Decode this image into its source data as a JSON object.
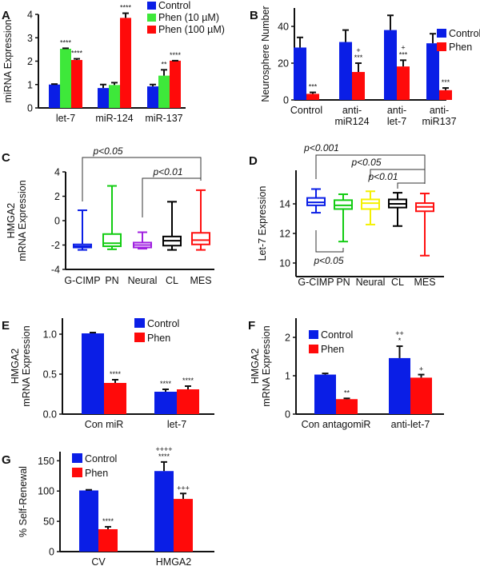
{
  "figure": {
    "colors": {
      "control": "#0a1ee6",
      "phen": "#ff0a0a",
      "phen10": "#3ee83a",
      "phen100": "#ff0a0a",
      "gcimp": "#0a1ee6",
      "pn": "#12cc12",
      "neural_c": "#a020e0",
      "neural_d": "#f4f000",
      "cl": "#000000",
      "mes": "#ff1010",
      "axis": "#111111"
    }
  },
  "chart_data": [
    {
      "panel": "A",
      "type": "bar",
      "title": "",
      "xlabel": "",
      "ylabel": "miRNA Expression",
      "ylim": [
        0,
        4
      ],
      "yticks": [
        "0",
        "1",
        "2",
        "3",
        "4"
      ],
      "categories": [
        "let-7",
        "miR-124",
        "miR-137"
      ],
      "legend": {
        "placement": "top-right",
        "entries": [
          "Control",
          "Phen (10 µM)",
          "Phen (100 µM)"
        ]
      },
      "series": [
        {
          "name": "Control",
          "values": [
            1.0,
            0.85,
            0.92
          ],
          "errors": [
            0.02,
            0.15,
            0.08
          ],
          "sig": [
            "",
            "",
            ""
          ]
        },
        {
          "name": "Phen (10 µM)",
          "values": [
            2.53,
            0.98,
            1.38
          ],
          "errors": [
            0.02,
            0.1,
            0.25
          ],
          "sig": [
            "****",
            "",
            "**"
          ]
        },
        {
          "name": "Phen (100 µM)",
          "values": [
            2.05,
            3.85,
            2.02
          ],
          "errors": [
            0.05,
            0.2,
            0.0
          ],
          "sig": [
            "****",
            "****",
            "****"
          ]
        }
      ]
    },
    {
      "panel": "B",
      "type": "bar",
      "ylabel": "Neurosphere  Number",
      "ylim": [
        0,
        50
      ],
      "yticks": [
        "0",
        "20",
        "40"
      ],
      "categories": [
        [
          "Control"
        ],
        [
          "anti-",
          "miR124"
        ],
        [
          "anti-",
          "let-7"
        ],
        [
          "anti-",
          "miR137"
        ]
      ],
      "legend": {
        "placement": "right",
        "entries": [
          "Control",
          "Phen"
        ]
      },
      "series": [
        {
          "name": "Control",
          "values": [
            28.5,
            31.5,
            38,
            30.8
          ],
          "errors": [
            5.5,
            6.5,
            8,
            5.2
          ],
          "sig": [
            "",
            "",
            "",
            ""
          ]
        },
        {
          "name": "Phen",
          "values": [
            3.3,
            15.2,
            18.2,
            5.3
          ],
          "errors": [
            0.8,
            4.8,
            3.4,
            1.2
          ],
          "sig": [
            "***",
            "+\n***",
            "+\n***",
            "***"
          ]
        }
      ]
    },
    {
      "panel": "C",
      "type": "box",
      "ylabel": "HMGA2\nmRNA Expression",
      "ylim": [
        -4,
        4
      ],
      "yticks": [
        "-4",
        "-2",
        "0",
        "2",
        "4"
      ],
      "categories": [
        "G-CIMP",
        "PN",
        "Neural",
        "CL",
        "MES"
      ],
      "boxes": [
        {
          "name": "G-CIMP",
          "min": -2.4,
          "q1": -2.2,
          "median": -2.1,
          "q3": -1.95,
          "max": 0.85
        },
        {
          "name": "PN",
          "min": -2.35,
          "q1": -2.1,
          "median": -1.85,
          "q3": -1.1,
          "max": 2.85
        },
        {
          "name": "Neural",
          "min": -2.3,
          "q1": -2.2,
          "median": -2.0,
          "q3": -1.8,
          "max": -0.95
        },
        {
          "name": "CL",
          "min": -2.4,
          "q1": -2.05,
          "median": -1.65,
          "q3": -1.3,
          "max": 1.55
        },
        {
          "name": "MES",
          "min": -2.4,
          "q1": -1.95,
          "median": -1.6,
          "q3": -1.0,
          "max": 2.5
        }
      ],
      "annotations": [
        {
          "text": "p<0.05",
          "from": "G-CIMP",
          "to": "MES"
        },
        {
          "text": "p<0.01",
          "from": "Neural",
          "to": "MES"
        }
      ]
    },
    {
      "panel": "D",
      "type": "box",
      "ylabel": "Let-7  Expression",
      "ylim": [
        9,
        16
      ],
      "yticks": [
        "10",
        "12",
        "14"
      ],
      "categories": [
        "G-CIMP",
        "PN",
        "Neural",
        "CL",
        "MES"
      ],
      "boxes": [
        {
          "name": "G-CIMP",
          "min": 13.4,
          "q1": 13.9,
          "median": 14.1,
          "q3": 14.4,
          "max": 15.0
        },
        {
          "name": "PN",
          "min": 11.45,
          "q1": 13.65,
          "median": 13.9,
          "q3": 14.25,
          "max": 14.65
        },
        {
          "name": "Neural",
          "min": 12.6,
          "q1": 13.65,
          "median": 14.05,
          "q3": 14.3,
          "max": 14.85
        },
        {
          "name": "CL",
          "min": 12.5,
          "q1": 13.75,
          "median": 14.0,
          "q3": 14.3,
          "max": 14.75
        },
        {
          "name": "MES",
          "min": 10.5,
          "q1": 13.5,
          "median": 13.8,
          "q3": 14.05,
          "max": 14.7
        }
      ],
      "annotations": [
        {
          "text": "p<0.001",
          "from": "G-CIMP",
          "to": "MES"
        },
        {
          "text": "p<0.05",
          "from": "Neural",
          "to": "MES"
        },
        {
          "text": "p<0.01",
          "from": "CL",
          "to": "MES"
        },
        {
          "text": "p<0.05",
          "from": "G-CIMP",
          "to": "PN"
        }
      ]
    },
    {
      "panel": "E",
      "type": "bar",
      "ylabel": "HMGA2\nmRNA Expression",
      "ylim": [
        0,
        1.2
      ],
      "yticks": [
        "0.0",
        "0.5",
        "1.0"
      ],
      "categories": [
        [
          "Con  miR"
        ],
        [
          "let-7"
        ]
      ],
      "legend": {
        "placement": "top-right",
        "entries": [
          "Control",
          "Phen"
        ]
      },
      "series": [
        {
          "name": "Control",
          "values": [
            1.01,
            0.28
          ],
          "errors": [
            0.01,
            0.03
          ],
          "sig": [
            "",
            "****"
          ]
        },
        {
          "name": "Phen",
          "values": [
            0.39,
            0.31
          ],
          "errors": [
            0.04,
            0.04
          ],
          "sig": [
            "****",
            "****"
          ]
        }
      ]
    },
    {
      "panel": "F",
      "type": "bar",
      "ylabel": "HMGA2\nmRNA Expression",
      "ylim": [
        0,
        2.5
      ],
      "yticks": [
        "0",
        "1",
        "2"
      ],
      "categories": [
        [
          "Con  antagomiR"
        ],
        [
          "anti-let-7"
        ]
      ],
      "legend": {
        "placement": "top-left",
        "entries": [
          "Control",
          "Phen"
        ]
      },
      "series": [
        {
          "name": "Control",
          "values": [
            1.03,
            1.46
          ],
          "errors": [
            0.03,
            0.31
          ],
          "sig": [
            "",
            "++\n*"
          ]
        },
        {
          "name": "Phen",
          "values": [
            0.39,
            0.95
          ],
          "errors": [
            0.02,
            0.08
          ],
          "sig": [
            "**",
            "+"
          ]
        }
      ]
    },
    {
      "panel": "G",
      "type": "bar",
      "ylabel": "% Self-Renewal",
      "ylim": [
        0,
        165
      ],
      "yticks": [
        "0",
        "50",
        "100",
        "150"
      ],
      "categories": [
        [
          "CV"
        ],
        [
          "HMGA2"
        ]
      ],
      "legend": {
        "placement": "top-left",
        "entries": [
          "Control",
          "Phen"
        ]
      },
      "series": [
        {
          "name": "Control",
          "values": [
            101,
            133
          ],
          "errors": [
            1,
            15
          ],
          "sig": [
            "",
            "++++\n****"
          ]
        },
        {
          "name": "Phen",
          "values": [
            37,
            87
          ],
          "errors": [
            4,
            9
          ],
          "sig": [
            "****",
            "+++"
          ]
        }
      ]
    }
  ]
}
